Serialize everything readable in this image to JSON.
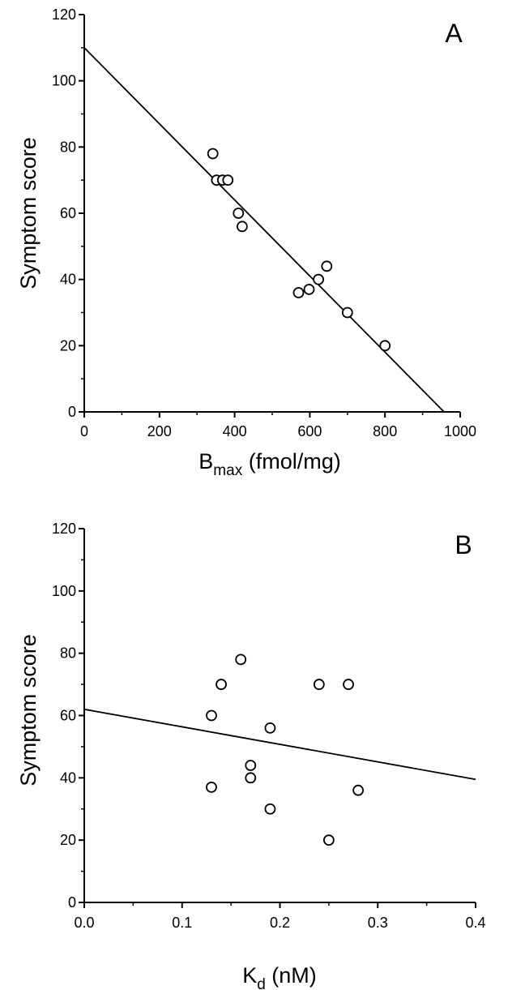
{
  "chart_data": [
    {
      "type": "scatter",
      "panel_label": "A",
      "xlabel_main": "B",
      "xlabel_sub": "max",
      "xlabel_rest": " (fmol/mg)",
      "ylabel": "Symptom score",
      "xlim": [
        0,
        1000
      ],
      "ylim": [
        0,
        120
      ],
      "xticks": [
        0,
        200,
        400,
        600,
        800,
        1000
      ],
      "xtick_labels": [
        "0",
        "200",
        "400",
        "600",
        "800",
        "1000"
      ],
      "yticks": [
        0,
        20,
        40,
        60,
        80,
        100,
        120
      ],
      "ytick_labels": [
        "0",
        "20",
        "40",
        "60",
        "80",
        "100",
        "120"
      ],
      "grid": false,
      "points": [
        {
          "x": 342,
          "y": 78
        },
        {
          "x": 352,
          "y": 70
        },
        {
          "x": 368,
          "y": 70
        },
        {
          "x": 382,
          "y": 70
        },
        {
          "x": 410,
          "y": 60
        },
        {
          "x": 420,
          "y": 56
        },
        {
          "x": 570,
          "y": 36
        },
        {
          "x": 598,
          "y": 37
        },
        {
          "x": 623,
          "y": 40
        },
        {
          "x": 645,
          "y": 44
        },
        {
          "x": 700,
          "y": 30
        },
        {
          "x": 800,
          "y": 20
        }
      ],
      "fit_line": {
        "x": [
          0,
          957
        ],
        "y": [
          110,
          0
        ]
      }
    },
    {
      "type": "scatter",
      "panel_label": "B",
      "xlabel_main": "K",
      "xlabel_sub": "d",
      "xlabel_rest": " (nM)",
      "ylabel": "Symptom score",
      "xlim": [
        0,
        0.4
      ],
      "ylim": [
        0,
        120
      ],
      "xticks": [
        0,
        0.1,
        0.2,
        0.3,
        0.4
      ],
      "xtick_labels": [
        "0.0",
        "0.1",
        "0.2",
        "0.3",
        "0.4"
      ],
      "yticks": [
        0,
        20,
        40,
        60,
        80,
        100,
        120
      ],
      "ytick_labels": [
        "0",
        "20",
        "40",
        "60",
        "80",
        "100",
        "120"
      ],
      "grid": false,
      "points": [
        {
          "x": 0.13,
          "y": 60
        },
        {
          "x": 0.13,
          "y": 37
        },
        {
          "x": 0.14,
          "y": 70
        },
        {
          "x": 0.16,
          "y": 78
        },
        {
          "x": 0.17,
          "y": 44
        },
        {
          "x": 0.17,
          "y": 40
        },
        {
          "x": 0.19,
          "y": 56
        },
        {
          "x": 0.19,
          "y": 30
        },
        {
          "x": 0.24,
          "y": 70
        },
        {
          "x": 0.25,
          "y": 20
        },
        {
          "x": 0.27,
          "y": 70
        },
        {
          "x": 0.28,
          "y": 36
        }
      ],
      "fit_line": {
        "x": [
          0,
          0.4
        ],
        "y": [
          62,
          39.5
        ]
      }
    }
  ]
}
